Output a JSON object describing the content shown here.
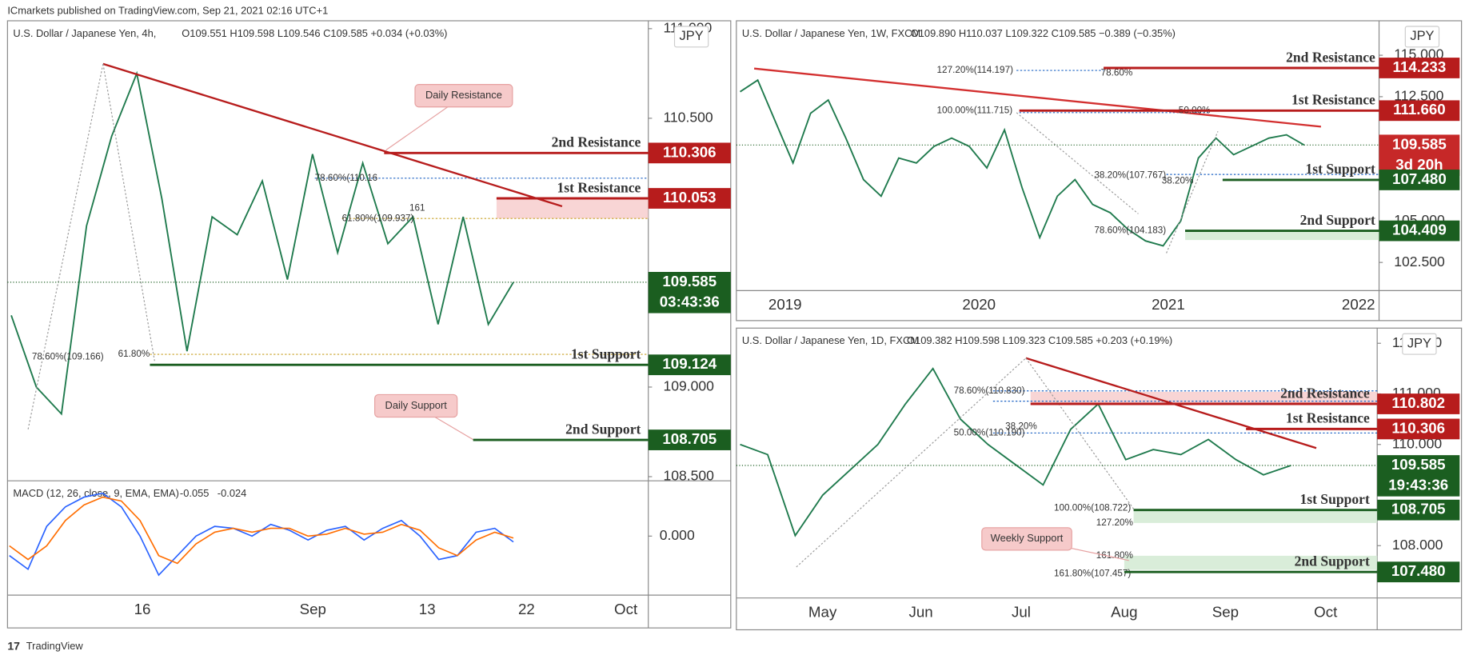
{
  "publisher": "ICmarkets published on TradingView.com, Sep 21, 2021 02:16 UTC+1",
  "footer": "TradingView",
  "chart_data": [
    {
      "type": "line",
      "title": "U.S. Dollar / Japanese Yen, 4h,",
      "legend": "O109.551 H109.598 L109.546 C109.585 +0.034 (+0.03%)",
      "currency": "JPY",
      "grid": false,
      "ylim": [
        108.482,
        111.044
      ],
      "yticks": [
        {
          "value": 108.5,
          "label": "108.500"
        },
        {
          "value": 109,
          "label": "109.000"
        },
        {
          "value": 110.5,
          "label": "110.500"
        },
        {
          "value": 111,
          "label": "111.000"
        }
      ],
      "x_labels": [
        "16",
        "Sep",
        "13",
        "22",
        "Oct"
      ],
      "series": [
        {
          "color": "#1f7a4d",
          "values": [
            109.4,
            109.0,
            108.85,
            109.9,
            110.4,
            110.75,
            110.05,
            109.2,
            109.95,
            109.85,
            110.15,
            109.6,
            110.3,
            109.75,
            110.25,
            109.8,
            109.95,
            109.35,
            109.95,
            109.35,
            109.585
          ]
        }
      ],
      "levels": [
        {
          "name": "2nd Resistance",
          "value": 110.306,
          "color": "#b71c1c"
        },
        {
          "name": "1st Resistance",
          "value": 110.053,
          "color": "#b71c1c"
        },
        {
          "name": "1st Support",
          "value": 109.124,
          "color": "#1b5e20"
        },
        {
          "name": "2nd Support",
          "value": 108.705,
          "color": "#1b5e20"
        }
      ],
      "current": {
        "value": 109.585,
        "countdown": "03:43:36",
        "color": "#1b5e20"
      },
      "annotations": [
        "78.60%(110.16",
        "61.80%(109.937)",
        "161",
        "78.60%(109.166)",
        "61.80%"
      ],
      "callouts": [
        "Daily Resistance",
        "Daily Support"
      ],
      "macd": {
        "title": "MACD (12, 26, close, 9, EMA, EMA)",
        "macd_value": -0.055,
        "signal_value": -0.024,
        "ylim": [
          -0.25,
          0.25
        ],
        "yticks": [
          {
            "value": 0,
            "label": "0.000"
          }
        ],
        "series": [
          {
            "color": "#2962ff",
            "values": [
              -0.1,
              -0.17,
              0.05,
              0.15,
              0.2,
              0.22,
              0.15,
              0.0,
              -0.2,
              -0.1,
              0.0,
              0.05,
              0.04,
              0.0,
              0.06,
              0.03,
              -0.02,
              0.03,
              0.05,
              -0.02,
              0.04,
              0.08,
              0.0,
              -0.12,
              -0.1,
              0.02,
              0.04,
              -0.03
            ]
          },
          {
            "color": "#ff6d00",
            "values": [
              -0.05,
              -0.12,
              -0.05,
              0.08,
              0.16,
              0.2,
              0.18,
              0.08,
              -0.1,
              -0.14,
              -0.04,
              0.02,
              0.04,
              0.02,
              0.04,
              0.04,
              0.0,
              0.01,
              0.04,
              0.01,
              0.02,
              0.06,
              0.03,
              -0.06,
              -0.1,
              -0.02,
              0.02,
              -0.01
            ]
          }
        ]
      }
    },
    {
      "type": "line",
      "title": "U.S. Dollar / Japanese Yen, 1W, FXCM",
      "legend": "O109.890 H110.037 L109.322 C109.585 −0.389 (−0.35%)",
      "currency": "JPY",
      "grid": false,
      "ylim": [
        100.8,
        117.08
      ],
      "yticks": [
        {
          "value": 102.5,
          "label": "102.500"
        },
        {
          "value": 105,
          "label": "105.000"
        },
        {
          "value": 112.5,
          "label": "112.500"
        },
        {
          "value": 115,
          "label": "115.000"
        }
      ],
      "x_labels": [
        "2019",
        "2020",
        "2021",
        "2022"
      ],
      "series": [
        {
          "color": "#1f7a4d",
          "values": [
            112.8,
            113.5,
            111,
            108.5,
            111.5,
            112.3,
            110,
            107.5,
            106.5,
            108.8,
            108.5,
            109.5,
            110,
            109.5,
            108.2,
            110.5,
            107,
            104,
            106.5,
            107.5,
            106,
            105.5,
            104.5,
            103.8,
            103.5,
            105,
            108.8,
            110,
            109,
            109.5,
            110,
            110.2,
            109.585
          ]
        }
      ],
      "levels": [
        {
          "name": "2nd Resistance",
          "value": 114.233,
          "color": "#b71c1c"
        },
        {
          "name": "1st Resistance",
          "value": 111.66,
          "value_label": "111.660",
          "color": "#b71c1c"
        },
        {
          "name": "1st Support",
          "value": 107.48,
          "value_label": "107.480",
          "color": "#1b5e20"
        },
        {
          "name": "2nd Support",
          "value": 104.409,
          "color": "#1b5e20"
        }
      ],
      "current": {
        "value": 109.585,
        "countdown": "3d 20h",
        "color": "#c62828"
      },
      "annotations": [
        "127.20%(114.197)",
        "78.60%",
        "100.00%(111.715)",
        "50.00%",
        "38.20%(107.767)",
        "38.20%",
        "78.60%(104.183)"
      ],
      "callouts": []
    },
    {
      "type": "line",
      "title": "U.S. Dollar / Japanese Yen, 1D, FXCM",
      "legend": "O109.382 H109.598 L109.323 C109.585 +0.203 (+0.19%)",
      "currency": "JPY",
      "grid": false,
      "ylim": [
        106.93,
        112.3
      ],
      "yticks": [
        {
          "value": 108,
          "label": "108.000"
        },
        {
          "value": 110,
          "label": "110.000"
        },
        {
          "value": 111,
          "label": "111.000"
        },
        {
          "value": 112,
          "label": "112.000"
        }
      ],
      "x_labels": [
        "May",
        "Jun",
        "Jul",
        "Aug",
        "Sep",
        "Oct"
      ],
      "series": [
        {
          "color": "#1f7a4d",
          "values": [
            110.0,
            109.8,
            108.2,
            109.0,
            109.5,
            110.0,
            110.8,
            111.5,
            110.5,
            110.0,
            109.6,
            109.2,
            110.3,
            110.8,
            109.7,
            109.9,
            109.8,
            110.1,
            109.7,
            109.4,
            109.585
          ]
        }
      ],
      "levels": [
        {
          "name": "2nd Resistance",
          "value": 110.802,
          "color": "#b71c1c"
        },
        {
          "name": "1st Resistance",
          "value": 110.306,
          "color": "#b71c1c"
        },
        {
          "name": "1st Support",
          "value": 108.705,
          "color": "#1b5e20"
        },
        {
          "name": "2nd Support",
          "value": 107.48,
          "value_label": "107.480",
          "color": "#1b5e20"
        }
      ],
      "current": {
        "value": 109.585,
        "countdown": "19:43:36",
        "color": "#1b5e20"
      },
      "annotations": [
        "78.60%(110.830)",
        "50.00%(110.190)",
        "38.20%",
        "100.00%(108.722)",
        "127.20%",
        "161.80%",
        "161.80%(107.457)"
      ],
      "callouts": [
        "Weekly Support"
      ]
    }
  ]
}
